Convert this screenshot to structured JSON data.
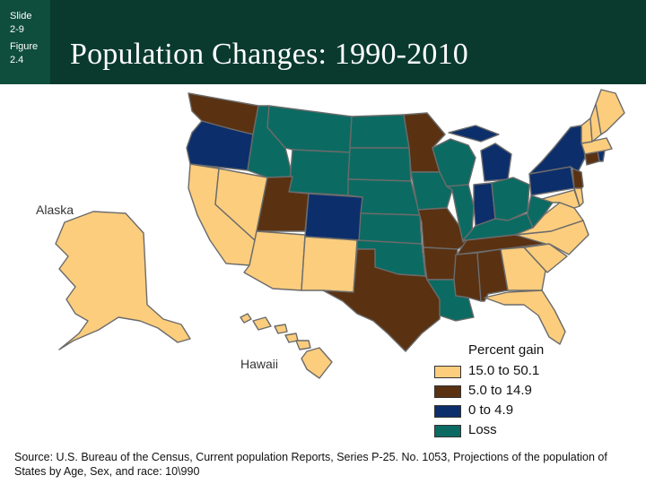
{
  "slide": {
    "line1": "Slide",
    "line2": "2-9",
    "line3": "Figure",
    "line4": "2.4"
  },
  "title": "Population Changes: 1990-2010",
  "labels": {
    "alaska": "Alaska",
    "hawaii": "Hawaii"
  },
  "colors": {
    "gain_high": "#fbcd7d",
    "gain_mid": "#5a3212",
    "gain_low": "#0c2f6b",
    "loss": "#0b6b62",
    "header": "#0a3a2e"
  },
  "legend": {
    "title": "Percent gain",
    "items": [
      {
        "label": "15.0 to 50.1",
        "color": "#fbcd7d"
      },
      {
        "label": "5.0 to 14.9",
        "color": "#5a3212"
      },
      {
        "label": "0 to 4.9",
        "color": "#0c2f6b"
      },
      {
        "label": "Loss",
        "color": "#0b6b62"
      }
    ]
  },
  "states": {
    "WA": "gain_mid",
    "OR": "gain_low",
    "CA": "gain_high",
    "NV": "gain_high",
    "ID": "loss",
    "MT": "loss",
    "WY": "loss",
    "UT": "gain_mid",
    "AZ": "gain_high",
    "CO": "gain_low",
    "NM": "gain_high",
    "ND": "loss",
    "SD": "loss",
    "NE": "loss",
    "KS": "loss",
    "OK": "loss",
    "TX": "gain_mid",
    "MN": "gain_mid",
    "IA": "loss",
    "MO": "gain_mid",
    "AR": "gain_mid",
    "LA": "loss",
    "WI": "loss",
    "IL": "loss",
    "MI": "gain_low",
    "IN": "gain_low",
    "OH": "loss",
    "KY": "loss",
    "TN": "gain_mid",
    "MS": "gain_mid",
    "AL": "gain_mid",
    "GA": "gain_high",
    "FL": "gain_high",
    "SC": "gain_high",
    "NC": "gain_high",
    "VA": "gain_high",
    "WV": "loss",
    "PA": "gain_low",
    "NY": "gain_low",
    "NJ": "gain_mid",
    "MD": "gain_high",
    "DE": "gain_high",
    "CT": "gain_mid",
    "RI": "gain_low",
    "MA": "gain_high",
    "VT": "gain_high",
    "NH": "gain_high",
    "ME": "gain_high",
    "AK": "gain_high",
    "HI": "gain_high"
  },
  "source": "Source: U.S. Bureau of the Census, Current population Reports, Series P-25. No. 1053, Projections of the population of States by Age, Sex, and race: 10\\990"
}
